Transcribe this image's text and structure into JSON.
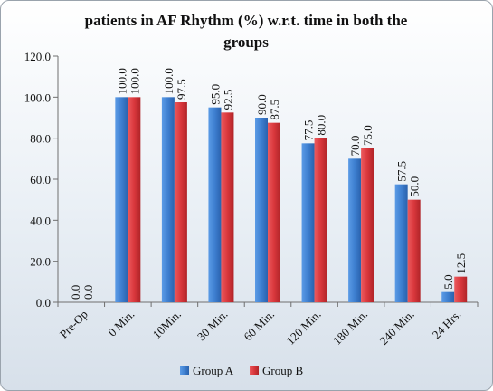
{
  "chart_data": {
    "type": "bar",
    "title_lines": [
      "patients in AF Rhythm (%) w.r.t. time in both the",
      "groups"
    ],
    "xlabel": "",
    "ylabel": "",
    "categories": [
      "Pre-Op",
      "0 Min.",
      "10Min.",
      "30 Min.",
      "60 Min.",
      "120 Min.",
      "180 Min.",
      "240 Min.",
      "24 Hrs."
    ],
    "series": [
      {
        "name": "Group A",
        "values": [
          0.0,
          100.0,
          100.0,
          95.0,
          90.0,
          77.5,
          70.0,
          57.5,
          5.0
        ],
        "color": "#3e7fd0"
      },
      {
        "name": "Group B",
        "values": [
          0.0,
          100.0,
          97.5,
          92.5,
          87.5,
          80.0,
          75.0,
          50.0,
          12.5
        ],
        "color": "#d9373c"
      }
    ],
    "ylim": [
      0,
      120
    ],
    "yticks": [
      "0.0",
      "20.0",
      "40.0",
      "60.0",
      "80.0",
      "100.0",
      "120.0"
    ],
    "grid": false,
    "legend_position": "bottom"
  }
}
